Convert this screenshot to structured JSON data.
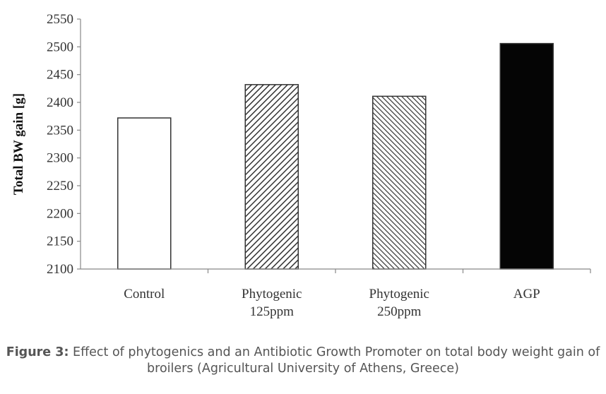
{
  "chart_data": {
    "type": "bar",
    "categories": [
      [
        "Control"
      ],
      [
        "Phytogenic",
        "125ppm"
      ],
      [
        "Phytogenic",
        "250ppm"
      ],
      [
        "AGP"
      ]
    ],
    "values": [
      2372,
      2432,
      2411,
      2506
    ],
    "fills": [
      "white",
      "hatch",
      "hatch-dense",
      "black"
    ],
    "ylabel": "Total BW gain [g]",
    "ylim": [
      2100,
      2550
    ],
    "yticks": [
      2100,
      2150,
      2200,
      2250,
      2300,
      2350,
      2400,
      2450,
      2500,
      2550
    ],
    "grid": false,
    "legend": "none"
  },
  "caption": {
    "label": "Figure 3:",
    "text": " Effect of phytogenics and an Antibiotic Growth Promoter on total body weight gain of broilers (Agricultural University of Athens, Greece)"
  },
  "colors": {
    "bar_outline": "#333333",
    "bar_black": "#050505",
    "axis": "#888888",
    "caption_text": "#555555"
  }
}
